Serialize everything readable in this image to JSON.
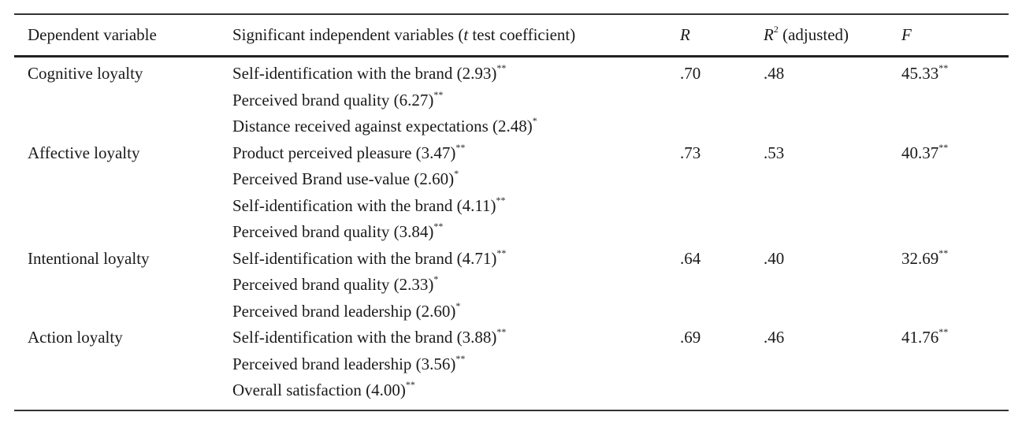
{
  "header": {
    "dependent": "Dependent variable",
    "independent_pre": "Significant independent variables (",
    "independent_t": "t",
    "independent_post": " test coefficient)",
    "r": "R",
    "r2_base": "R",
    "r2_exp": "2",
    "r2_suffix": " (adjusted)",
    "f": "F"
  },
  "rows": [
    {
      "dependent": "Cognitive loyalty",
      "vars": [
        {
          "text": "Self-identification with the brand (2.93)",
          "sig": "**"
        },
        {
          "text": "Perceived brand quality (6.27)",
          "sig": "**"
        },
        {
          "text": "Distance received against expectations (2.48)",
          "sig": "*"
        }
      ],
      "r": ".70",
      "r2": ".48",
      "f": "45.33",
      "f_sig": "**"
    },
    {
      "dependent": "Affective loyalty",
      "vars": [
        {
          "text": "Product perceived pleasure (3.47)",
          "sig": "**"
        },
        {
          "text": "Perceived Brand use-value (2.60)",
          "sig": "*"
        },
        {
          "text": "Self-identification with the brand (4.11)",
          "sig": "**"
        },
        {
          "text": "Perceived brand quality (3.84)",
          "sig": "**"
        }
      ],
      "r": ".73",
      "r2": ".53",
      "f": "40.37",
      "f_sig": "**"
    },
    {
      "dependent": "Intentional loyalty",
      "vars": [
        {
          "text": "Self-identification with the brand (4.71)",
          "sig": "**"
        },
        {
          "text": "Perceived brand quality (2.33)",
          "sig": "*"
        },
        {
          "text": "Perceived brand leadership (2.60)",
          "sig": "*"
        }
      ],
      "r": ".64",
      "r2": ".40",
      "f": "32.69",
      "f_sig": "**"
    },
    {
      "dependent": "Action loyalty",
      "vars": [
        {
          "text": "Self-identification with the brand (3.88)",
          "sig": "**"
        },
        {
          "text": "Perceived brand leadership (3.56)",
          "sig": "**"
        },
        {
          "text": "Overall satisfaction (4.00)",
          "sig": "**"
        }
      ],
      "r": ".69",
      "r2": ".46",
      "f": "41.76",
      "f_sig": "**"
    }
  ]
}
